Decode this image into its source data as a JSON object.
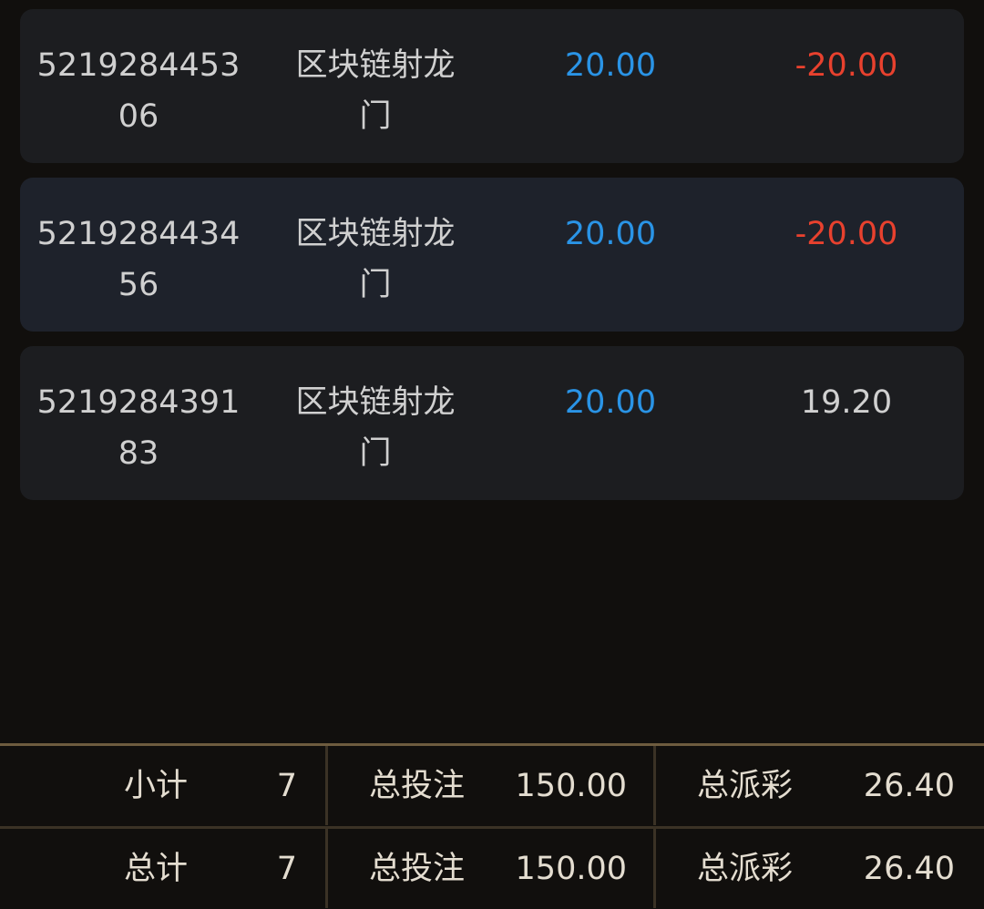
{
  "colors": {
    "bet": "#2a94e6",
    "loss": "#e8412e",
    "text": "#d0d0d0",
    "accent_border": "#6e5c3f"
  },
  "records": [
    {
      "id": "521928445306",
      "game": "区块链射龙门",
      "bet": "20.00",
      "result": "-20.00",
      "negative": true
    },
    {
      "id": "521928443456",
      "game": "区块链射龙门",
      "bet": "20.00",
      "result": "-20.00",
      "negative": true
    },
    {
      "id": "521928439183",
      "game": "区块链射龙门",
      "bet": "20.00",
      "result": "19.20",
      "negative": false
    }
  ],
  "footer": {
    "subtotal": {
      "label": "小计",
      "count": "7",
      "bet_label": "总投注",
      "bet": "150.00",
      "payout_label": "总派彩",
      "payout": "26.40"
    },
    "total": {
      "label": "总计",
      "count": "7",
      "bet_label": "总投注",
      "bet": "150.00",
      "payout_label": "总派彩",
      "payout": "26.40"
    }
  }
}
